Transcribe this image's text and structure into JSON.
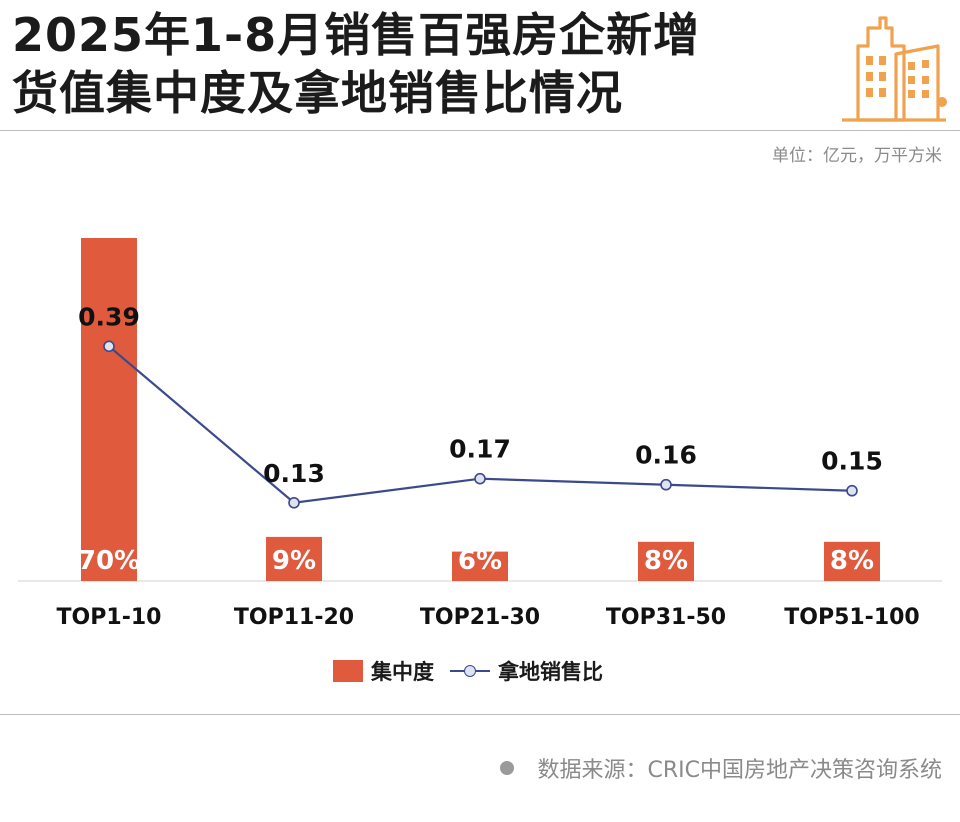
{
  "header": {
    "title_line1": "2025年1-8月销售百强房企新增",
    "title_line2": "货值集中度及拿地销售比情况",
    "unit": "单位：亿元，万平方米"
  },
  "legend": {
    "bar_label": "集中度",
    "line_label": "拿地销售比"
  },
  "footer": {
    "source": "数据来源：CRIC中国房地产决策咨询系统"
  },
  "colors": {
    "bar": "#e05a3e",
    "line": "#3b4a8c",
    "marker_fill": "#dfe3f1",
    "logo": "#f0a24e"
  },
  "icons": {
    "logo": "city-buildings-icon",
    "source_bullet": "bullet-dot-icon"
  },
  "chart_data": {
    "type": "bar",
    "categories": [
      "TOP1-10",
      "TOP11-20",
      "TOP21-30",
      "TOP31-50",
      "TOP51-100"
    ],
    "series": [
      {
        "name": "集中度",
        "type": "bar",
        "values": [
          70,
          9,
          6,
          8,
          8
        ],
        "labels": [
          "70%",
          "9%",
          "6%",
          "8%",
          "8%"
        ]
      },
      {
        "name": "拿地销售比",
        "type": "line",
        "values": [
          0.39,
          0.13,
          0.17,
          0.16,
          0.15
        ],
        "labels": [
          "0.39",
          "0.13",
          "0.17",
          "0.16",
          "0.15"
        ]
      }
    ],
    "bar_axis_range": [
      0,
      70
    ],
    "line_axis_range": [
      0,
      0.57
    ],
    "grid": false,
    "legend_position": "bottom-center"
  }
}
